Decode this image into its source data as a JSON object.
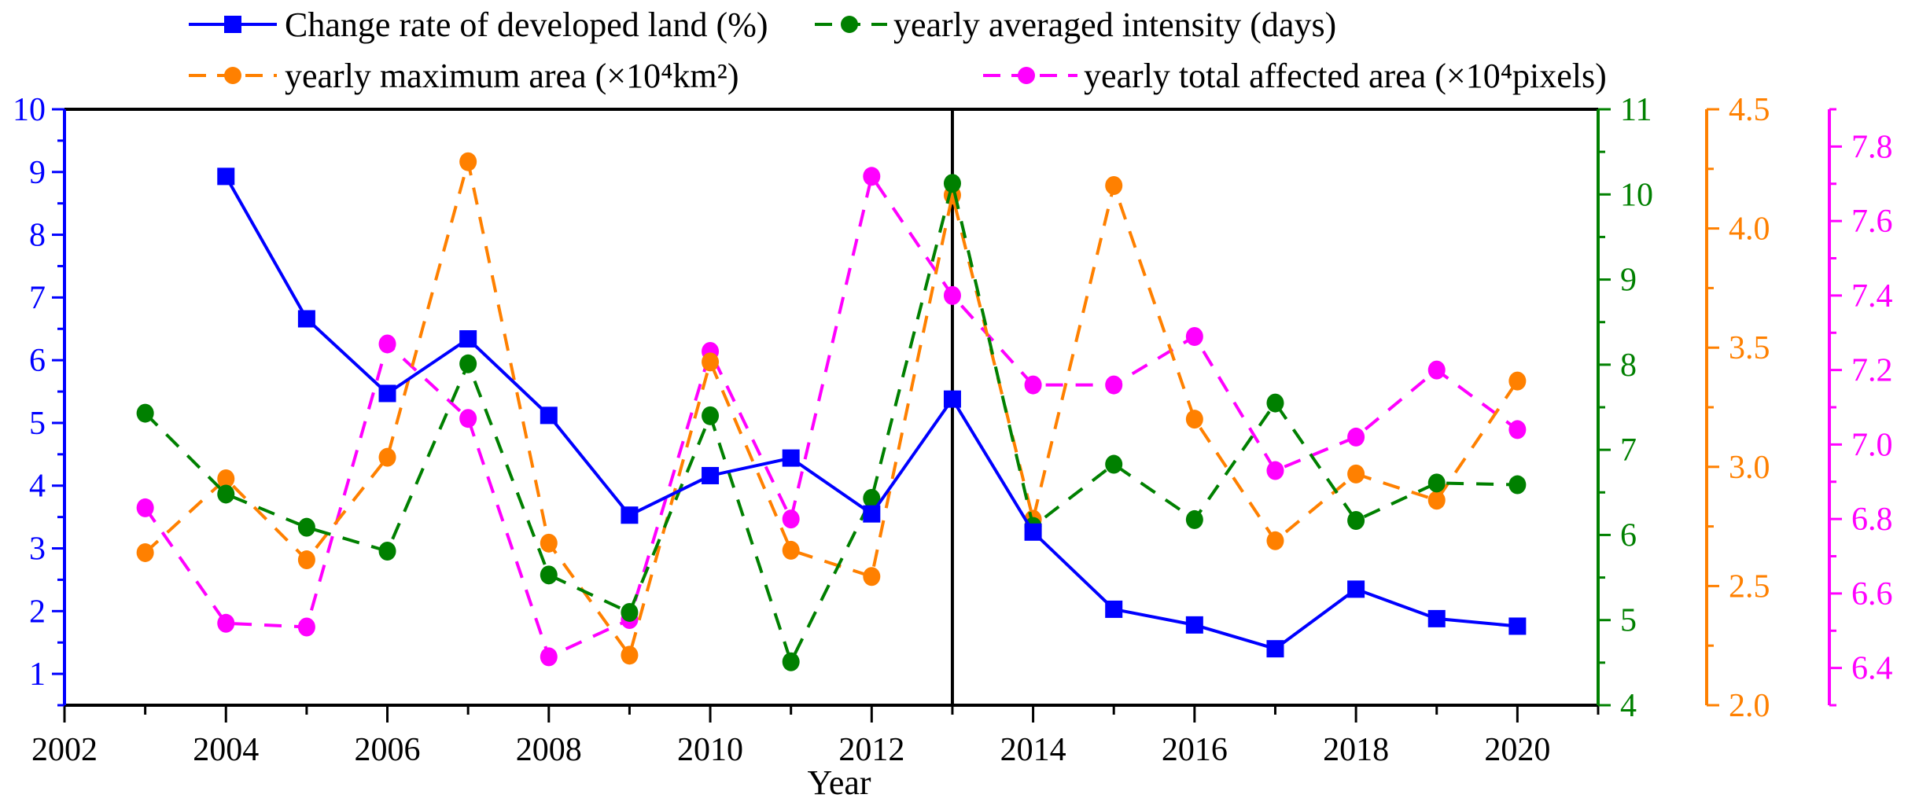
{
  "chart_data": {
    "type": "line",
    "title": "",
    "xlabel": "Year",
    "x": [
      2003,
      2004,
      2005,
      2006,
      2007,
      2008,
      2009,
      2010,
      2011,
      2012,
      2013,
      2014,
      2015,
      2016,
      2017,
      2018,
      2019,
      2020
    ],
    "xlim": [
      2002,
      2021
    ],
    "xticks": [
      "2002",
      "2004",
      "2006",
      "2008",
      "2010",
      "2012",
      "2014",
      "2016",
      "2018",
      "2020"
    ],
    "reference_line_x": 2013,
    "grid": false,
    "legend_position": "top",
    "axes": [
      {
        "id": "left",
        "ylim": [
          0.5,
          10
        ],
        "ticks": [
          "1",
          "2",
          "3",
          "4",
          "5",
          "6",
          "7",
          "8",
          "9",
          "10"
        ],
        "color": "#0000FF"
      },
      {
        "id": "green",
        "ylim": [
          4,
          11
        ],
        "ticks": [
          "4",
          "5",
          "6",
          "7",
          "8",
          "9",
          "10",
          "11"
        ],
        "color": "#008000"
      },
      {
        "id": "orange",
        "ylim": [
          2.0,
          4.5
        ],
        "ticks": [
          "2.0",
          "2.5",
          "3.0",
          "3.5",
          "4.0",
          "4.5"
        ],
        "color": "#FF8000"
      },
      {
        "id": "magenta",
        "ylim": [
          6.3,
          7.9
        ],
        "ticks": [
          "6.4",
          "6.6",
          "6.8",
          "7.0",
          "7.2",
          "7.4",
          "7.6",
          "7.8"
        ],
        "color": "#FF00FF"
      }
    ],
    "series": [
      {
        "name": "Change rate of developed land (%)",
        "axis": "left",
        "color": "#0000FF",
        "marker": "square",
        "line": "solid",
        "values": [
          null,
          8.93,
          6.66,
          5.47,
          6.34,
          5.12,
          3.53,
          4.16,
          4.44,
          3.55,
          5.38,
          3.26,
          2.03,
          1.78,
          1.4,
          2.35,
          1.88,
          1.76
        ]
      },
      {
        "name": "yearly averaged intensity (days)",
        "axis": "green",
        "color": "#008000",
        "marker": "circle",
        "line": "dashed",
        "values": [
          7.43,
          6.48,
          6.09,
          5.81,
          8.01,
          5.53,
          5.09,
          7.4,
          4.51,
          6.43,
          10.13,
          6.1,
          6.83,
          6.18,
          7.55,
          6.17,
          6.61,
          6.59
        ]
      },
      {
        "name": "yearly maximum area (×10⁴km²)",
        "axis": "orange",
        "color": "#FF8000",
        "marker": "circle",
        "line": "dashed",
        "values": [
          2.64,
          2.95,
          2.61,
          3.04,
          4.28,
          2.68,
          2.21,
          3.44,
          2.65,
          2.54,
          4.14,
          2.78,
          4.18,
          3.2,
          2.69,
          2.97,
          2.86,
          3.36
        ]
      },
      {
        "name": "yearly total affected area (×10⁴pixels)",
        "axis": "magenta",
        "color": "#FF00FF",
        "marker": "circle",
        "line": "dashed",
        "values": [
          6.83,
          6.52,
          6.51,
          7.27,
          7.07,
          6.43,
          6.53,
          7.25,
          6.8,
          7.72,
          7.4,
          7.16,
          7.16,
          7.29,
          6.93,
          7.02,
          7.2,
          7.04
        ]
      }
    ]
  }
}
